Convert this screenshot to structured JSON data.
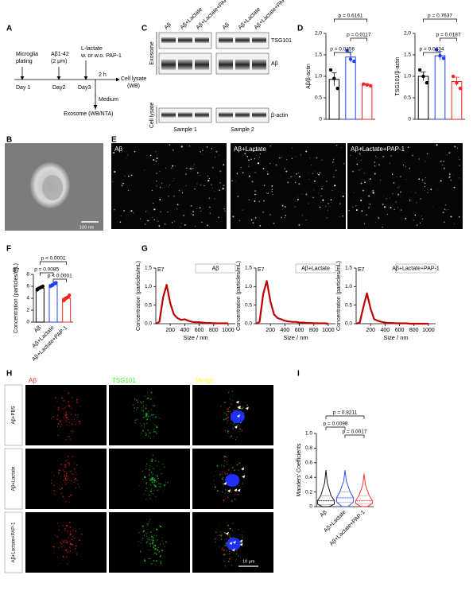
{
  "panel_labels": [
    "A",
    "B",
    "C",
    "D",
    "E",
    "F",
    "G",
    "H",
    "I"
  ],
  "schematic": {
    "plating": [
      "Microglia",
      "plating"
    ],
    "abeta": [
      "Aβ1-42",
      "(2 μm)"
    ],
    "lactate": [
      "L-lactate",
      "w. or w.o. PAP-1"
    ],
    "days": [
      "Day 1",
      "Day2",
      "Day3"
    ],
    "interval": "2 h",
    "lysate": [
      "Cell lysate",
      "(WB)"
    ],
    "medium": "Medium",
    "exosome": "Exosome (WB/NTA)"
  },
  "blot": {
    "lanes": [
      "Aβ",
      "Aβ+Lactate",
      "Aβ+Lactate+PAP-1",
      "Aβ",
      "Aβ+Lactate",
      "Aβ+Lactate+PAP-1"
    ],
    "groups": [
      "Exosome",
      "Cell lysate"
    ],
    "bands": [
      "TSG101",
      "Aβ",
      "β-actin"
    ],
    "samples": [
      "Sample 1",
      "Sample 2"
    ]
  },
  "em": {
    "scale": "100 nm"
  },
  "nanoparticle_images": {
    "conditions": [
      "Aβ",
      "Aβ+Lactate",
      "Aβ+Lactate+PAP-1"
    ]
  },
  "confocal": {
    "channels": [
      "Aβ",
      "TSG101",
      "Merge"
    ],
    "conditions": [
      "Aβ+PBS",
      "Aβ+Lactate",
      "Aβ+Lactate+PAP-1"
    ],
    "scale": "10 μm"
  },
  "chart_data": [
    {
      "type": "bar",
      "ylabel": "Aβ/β-actin",
      "values": [
        0.93,
        1.45,
        0.8
      ],
      "errors": [
        0.15,
        0.12,
        0.03
      ],
      "colors": [
        "#000000",
        "#1f3fff",
        "#ff2020"
      ],
      "points": [
        [
          1.15,
          0.95,
          0.72
        ],
        [
          1.6,
          1.4,
          1.35
        ],
        [
          0.82,
          0.8,
          0.78
        ]
      ],
      "ylim": [
        0,
        2
      ],
      "yticks": [
        0,
        0.5,
        {
          "value": 1,
          "label": "1.0"
        },
        1.5,
        {
          "value": 2,
          "label": "2.0"
        }
      ],
      "annotations": [
        "p = 0.6161",
        "p = 0.0356",
        "p = 0.0117"
      ]
    },
    {
      "type": "bar",
      "ylabel": "TSG101/β-actin",
      "values": [
        1.0,
        1.48,
        0.88
      ],
      "errors": [
        0.1,
        0.1,
        0.1
      ],
      "colors": [
        "#000000",
        "#1f3fff",
        "#ff2020"
      ],
      "points": [
        [
          1.15,
          1.0,
          0.85
        ],
        [
          1.62,
          1.48,
          1.42
        ],
        [
          1.0,
          0.85,
          0.72
        ]
      ],
      "ylim": [
        0,
        2
      ],
      "yticks": [
        0,
        0.5,
        {
          "value": 1,
          "label": "1.0"
        },
        1.5,
        {
          "value": 2,
          "label": "2.0"
        }
      ],
      "annotations": [
        "p = 0.7637",
        "p = 0.0434",
        "p = 0.0187"
      ]
    },
    {
      "type": "bar",
      "title": "E7",
      "ylabel": "Concentration (particles/mL)",
      "categories": [
        "Aβ",
        "Aβ+Lactate",
        "Aβ+Lactate+PAP-1"
      ],
      "values": [
        5.7,
        6.3,
        4.0
      ],
      "errors": [
        0.15,
        0.15,
        0.2
      ],
      "colors": [
        "#000000",
        "#1f3fff",
        "#ff2020"
      ],
      "points": [
        [
          5.4,
          5.6,
          5.7,
          5.8,
          5.9,
          6.0
        ],
        [
          6.0,
          6.1,
          6.2,
          6.4,
          6.5,
          6.6
        ],
        [
          3.6,
          3.8,
          4.0,
          4.1,
          4.2,
          4.5
        ]
      ],
      "ylim": [
        0,
        8
      ],
      "yticks": [
        0,
        2,
        4,
        6,
        8
      ],
      "annotations": [
        "p < 0.0001",
        "p = 0.0085",
        "p < 0.0001"
      ]
    },
    {
      "type": "line",
      "title": "E7",
      "xlabel": "Size / nm",
      "ylabel": "Concentration (particles/mL)",
      "x": [
        0,
        50,
        100,
        150,
        200,
        250,
        300,
        350,
        400,
        450,
        500,
        550,
        600,
        650,
        700,
        750,
        800,
        850,
        900,
        950,
        1000
      ],
      "series": [
        {
          "name": "Aβ",
          "color": "#c00000",
          "values": [
            0,
            0.05,
            0.7,
            1.05,
            0.55,
            0.25,
            0.15,
            0.1,
            0.12,
            0.08,
            0.05,
            0.04,
            0.04,
            0.03,
            0.02,
            0.02,
            0.01,
            0.01,
            0.01,
            0.01,
            0.01
          ]
        }
      ],
      "xlim": [
        0,
        1100
      ],
      "xticks": [
        200,
        400,
        600,
        800,
        1000
      ],
      "ylim": [
        0,
        1.5
      ],
      "yticks": [
        {
          "value": 0,
          "label": "0.0"
        },
        0.5,
        {
          "value": 1,
          "label": "1.0"
        },
        1.5
      ]
    },
    {
      "type": "line",
      "title": "E7",
      "xlabel": "Size / nm",
      "ylabel": "Concentration (particles/mL)",
      "x": [
        0,
        50,
        100,
        150,
        200,
        250,
        300,
        350,
        400,
        450,
        500,
        550,
        600,
        650,
        700,
        750,
        800,
        850,
        900,
        950,
        1000
      ],
      "series": [
        {
          "name": "Aβ+Lactate",
          "color": "#c00000",
          "values": [
            0,
            0.05,
            0.8,
            1.15,
            0.6,
            0.25,
            0.15,
            0.12,
            0.08,
            0.06,
            0.05,
            0.05,
            0.03,
            0.03,
            0.02,
            0.02,
            0.01,
            0.01,
            0.01,
            0.01,
            0
          ]
        }
      ],
      "xlim": [
        0,
        1100
      ],
      "xticks": [
        200,
        400,
        600,
        800,
        1000
      ],
      "ylim": [
        0,
        1.5
      ],
      "yticks": [
        {
          "value": 0,
          "label": "0.0"
        },
        0.5,
        {
          "value": 1,
          "label": "1.0"
        },
        1.5
      ]
    },
    {
      "type": "line",
      "title": "E7",
      "xlabel": "Size / nm",
      "ylabel": "Concentration (particles/mL)",
      "x": [
        0,
        50,
        100,
        150,
        200,
        250,
        300,
        350,
        400,
        450,
        500,
        550,
        600,
        650,
        700,
        750,
        800,
        850,
        900,
        950,
        1000
      ],
      "series": [
        {
          "name": "Aβ+Lactate+PAP-1",
          "color": "#c00000",
          "values": [
            0,
            0.03,
            0.45,
            0.82,
            0.4,
            0.12,
            0.08,
            0.05,
            0.03,
            0.02,
            0.02,
            0.01,
            0.01,
            0.01,
            0.01,
            0,
            0,
            0,
            0,
            0,
            0
          ]
        }
      ],
      "xlim": [
        0,
        1100
      ],
      "xticks": [
        200,
        400,
        600,
        800,
        1000
      ],
      "ylim": [
        0,
        1.5
      ],
      "yticks": [
        {
          "value": 0,
          "label": "0.0"
        },
        0.5,
        {
          "value": 1,
          "label": "1.0"
        },
        1.5
      ]
    },
    {
      "type": "violin",
      "ylabel": "Manders' Coefficients",
      "categories": [
        "Aβ",
        "Aβ+Lactate",
        "Aβ+Lactate+PAP-1"
      ],
      "colors": [
        "#000000",
        "#1f3fff",
        "#ff2020"
      ],
      "values": [
        0.08,
        0.12,
        0.08
      ],
      "q1": [
        0.03,
        0.06,
        0.04
      ],
      "q3": [
        0.15,
        0.2,
        0.15
      ],
      "min": [
        0,
        0,
        0
      ],
      "max": [
        0.5,
        0.5,
        0.45
      ],
      "ylim": [
        0,
        1
      ],
      "yticks": [
        0,
        0.2,
        0.4,
        0.6,
        0.8,
        {
          "value": 1,
          "label": "1.0"
        }
      ],
      "annotations": [
        "p = 0.8211",
        "p = 0.0098",
        "p = 0.0017"
      ]
    }
  ]
}
